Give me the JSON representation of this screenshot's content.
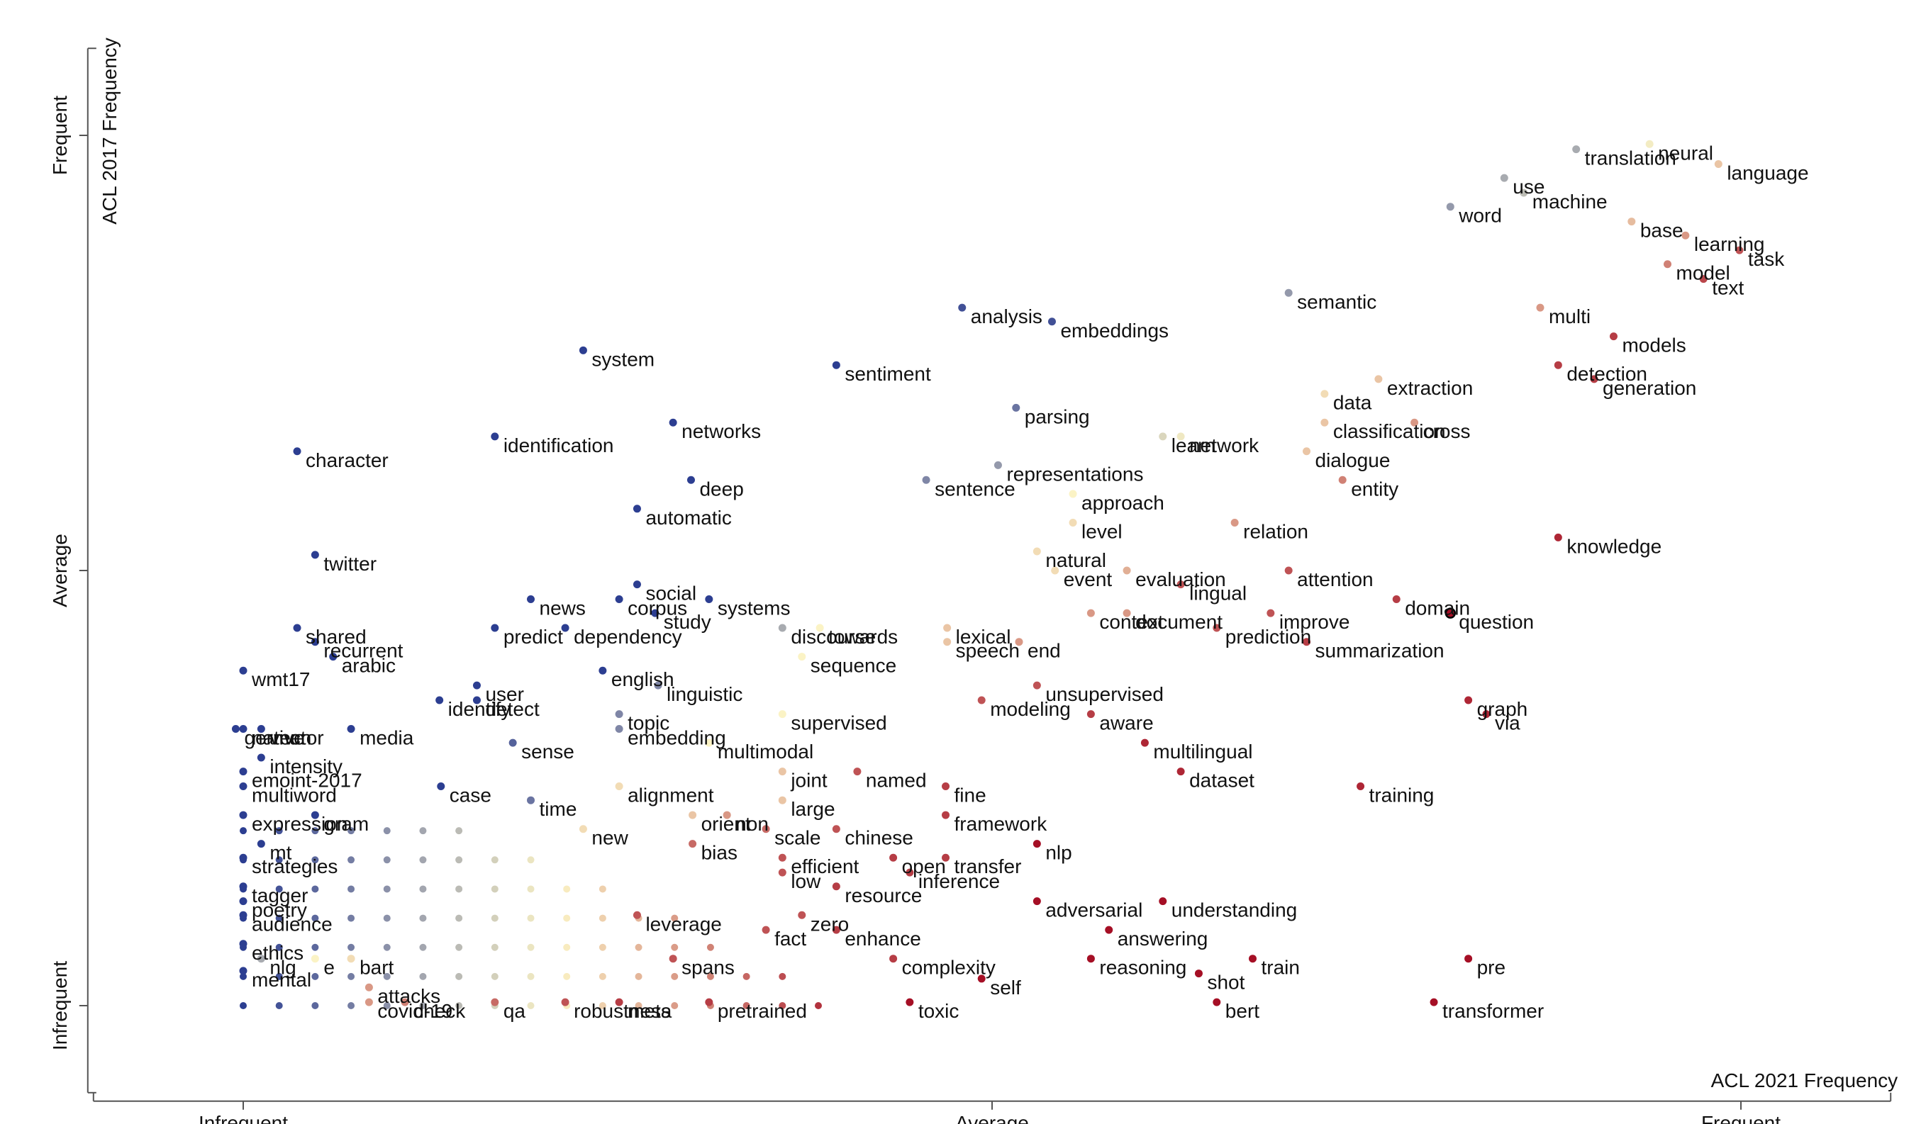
{
  "chart_data": {
    "type": "scatter",
    "xlabel": "ACL 2021 Frequency",
    "ylabel": "ACL 2017 Frequency",
    "x_ticks": [
      {
        "value": 0,
        "label": "Infrequent"
      },
      {
        "value": 0.5,
        "label": "Average"
      },
      {
        "value": 1,
        "label": "Frequent"
      }
    ],
    "y_ticks": [
      {
        "value": 0,
        "label": "Infrequent"
      },
      {
        "value": 0.5,
        "label": "Average"
      },
      {
        "value": 1,
        "label": "Frequent"
      }
    ],
    "xlim": [
      -0.1,
      1.1
    ],
    "ylim": [
      -0.1,
      1.1
    ],
    "grid": false,
    "legend": "none",
    "color_scale": {
      "low": "#2c3e91",
      "mid": "#fbf3c5",
      "high": "#a50f25"
    },
    "points": [
      {
        "label": "neural",
        "x": 0.939,
        "y": 0.99,
        "c": 0.48
      },
      {
        "label": "translation",
        "x": 0.89,
        "y": 0.984,
        "c": 0.3
      },
      {
        "label": "language",
        "x": 0.985,
        "y": 0.967,
        "c": 0.6
      },
      {
        "label": "use",
        "x": 0.842,
        "y": 0.951,
        "c": 0.3
      },
      {
        "label": "machine",
        "x": 0.855,
        "y": 0.934,
        "c": 0.35
      },
      {
        "label": "word",
        "x": 0.806,
        "y": 0.918,
        "c": 0.25
      },
      {
        "label": "base",
        "x": 0.927,
        "y": 0.901,
        "c": 0.62
      },
      {
        "label": "learning",
        "x": 0.963,
        "y": 0.885,
        "c": 0.7
      },
      {
        "label": "task",
        "x": 0.999,
        "y": 0.868,
        "c": 0.85
      },
      {
        "label": "model",
        "x": 0.951,
        "y": 0.852,
        "c": 0.75
      },
      {
        "label": "text",
        "x": 0.975,
        "y": 0.835,
        "c": 0.88
      },
      {
        "label": "semantic",
        "x": 0.698,
        "y": 0.819,
        "c": 0.25
      },
      {
        "label": "analysis",
        "x": 0.48,
        "y": 0.802,
        "c": 0.05
      },
      {
        "label": "multi",
        "x": 0.866,
        "y": 0.802,
        "c": 0.7
      },
      {
        "label": "embeddings",
        "x": 0.54,
        "y": 0.786,
        "c": 0.05
      },
      {
        "label": "models",
        "x": 0.915,
        "y": 0.769,
        "c": 0.9
      },
      {
        "label": "system",
        "x": 0.227,
        "y": 0.753,
        "c": 0.0
      },
      {
        "label": "sentiment",
        "x": 0.396,
        "y": 0.736,
        "c": 0.0
      },
      {
        "label": "detection",
        "x": 0.878,
        "y": 0.736,
        "c": 0.9
      },
      {
        "label": "extraction",
        "x": 0.758,
        "y": 0.72,
        "c": 0.6
      },
      {
        "label": "generation",
        "x": 0.902,
        "y": 0.72,
        "c": 0.9
      },
      {
        "label": "data",
        "x": 0.722,
        "y": 0.703,
        "c": 0.55
      },
      {
        "label": "parsing",
        "x": 0.516,
        "y": 0.687,
        "c": 0.15
      },
      {
        "label": "classification",
        "x": 0.722,
        "y": 0.67,
        "c": 0.6
      },
      {
        "label": "cross",
        "x": 0.782,
        "y": 0.67,
        "c": 0.7
      },
      {
        "label": "networks",
        "x": 0.287,
        "y": 0.67,
        "c": 0.0
      },
      {
        "label": "identification",
        "x": 0.168,
        "y": 0.654,
        "c": 0.0
      },
      {
        "label": "learn",
        "x": 0.614,
        "y": 0.654,
        "c": 0.42
      },
      {
        "label": "network",
        "x": 0.626,
        "y": 0.654,
        "c": 0.47
      },
      {
        "label": "character",
        "x": 0.036,
        "y": 0.637,
        "c": 0.0
      },
      {
        "label": "dialogue",
        "x": 0.71,
        "y": 0.637,
        "c": 0.6
      },
      {
        "label": "representations",
        "x": 0.504,
        "y": 0.621,
        "c": 0.25
      },
      {
        "label": "deep",
        "x": 0.299,
        "y": 0.604,
        "c": 0.0
      },
      {
        "label": "sentence",
        "x": 0.456,
        "y": 0.604,
        "c": 0.2
      },
      {
        "label": "entity",
        "x": 0.734,
        "y": 0.604,
        "c": 0.75
      },
      {
        "label": "approach",
        "x": 0.554,
        "y": 0.588,
        "c": 0.5
      },
      {
        "label": "automatic",
        "x": 0.263,
        "y": 0.571,
        "c": 0.0
      },
      {
        "label": "level",
        "x": 0.554,
        "y": 0.555,
        "c": 0.55
      },
      {
        "label": "relation",
        "x": 0.662,
        "y": 0.555,
        "c": 0.7
      },
      {
        "label": "natural",
        "x": 0.53,
        "y": 0.522,
        "c": 0.55
      },
      {
        "label": "knowledge",
        "x": 0.878,
        "y": 0.538,
        "c": 0.95
      },
      {
        "label": "twitter",
        "x": 0.048,
        "y": 0.518,
        "c": 0.0
      },
      {
        "label": "event",
        "x": 0.542,
        "y": 0.5,
        "c": 0.55
      },
      {
        "label": "evaluation",
        "x": 0.59,
        "y": 0.5,
        "c": 0.65
      },
      {
        "label": "attention",
        "x": 0.698,
        "y": 0.5,
        "c": 0.85
      },
      {
        "label": "lingual",
        "x": 0.626,
        "y": 0.484,
        "c": 0.85
      },
      {
        "label": "domain",
        "x": 0.77,
        "y": 0.467,
        "c": 0.9
      },
      {
        "label": "news",
        "x": 0.192,
        "y": 0.467,
        "c": 0.0
      },
      {
        "label": "social",
        "x": 0.263,
        "y": 0.484,
        "c": 0.0
      },
      {
        "label": "corpus",
        "x": 0.251,
        "y": 0.467,
        "c": 0.0
      },
      {
        "label": "study",
        "x": 0.275,
        "y": 0.451,
        "c": 0.0
      },
      {
        "label": "systems",
        "x": 0.311,
        "y": 0.467,
        "c": 0.0
      },
      {
        "label": "question",
        "x": 0.806,
        "y": 0.451,
        "c": 1.0
      },
      {
        "label": "improve",
        "x": 0.686,
        "y": 0.451,
        "c": 0.85
      },
      {
        "label": "context",
        "x": 0.566,
        "y": 0.451,
        "c": 0.7
      },
      {
        "label": "towards",
        "x": 0.385,
        "y": 0.434,
        "c": 0.5
      },
      {
        "label": "shared",
        "x": 0.036,
        "y": 0.434,
        "c": 0.0
      },
      {
        "label": "predict",
        "x": 0.168,
        "y": 0.434,
        "c": 0.0
      },
      {
        "label": "dependency",
        "x": 0.215,
        "y": 0.434,
        "c": 0.0
      },
      {
        "label": "lexical",
        "x": 0.47,
        "y": 0.434,
        "c": 0.6
      },
      {
        "label": "document",
        "x": 0.59,
        "y": 0.451,
        "c": 0.7
      },
      {
        "label": "prediction",
        "x": 0.65,
        "y": 0.434,
        "c": 0.85
      },
      {
        "label": "recurrent",
        "x": 0.048,
        "y": 0.418,
        "c": 0.0
      },
      {
        "label": "discourse",
        "x": 0.36,
        "y": 0.434,
        "c": 0.3
      },
      {
        "label": "summarization",
        "x": 0.71,
        "y": 0.418,
        "c": 0.9
      },
      {
        "label": "speech",
        "x": 0.47,
        "y": 0.418,
        "c": 0.6
      },
      {
        "label": "end",
        "x": 0.518,
        "y": 0.418,
        "c": 0.7
      },
      {
        "label": "wmt17",
        "x": 0.0,
        "y": 0.385,
        "c": 0.0
      },
      {
        "label": "arabic",
        "x": 0.06,
        "y": 0.401,
        "c": 0.0
      },
      {
        "label": "english",
        "x": 0.24,
        "y": 0.385,
        "c": 0.0
      },
      {
        "label": "linguistic",
        "x": 0.277,
        "y": 0.368,
        "c": 0.2
      },
      {
        "label": "sequence",
        "x": 0.373,
        "y": 0.401,
        "c": 0.5
      },
      {
        "label": "unsupervised",
        "x": 0.53,
        "y": 0.368,
        "c": 0.85
      },
      {
        "label": "user",
        "x": 0.156,
        "y": 0.368,
        "c": 0.0
      },
      {
        "label": "identify",
        "x": 0.131,
        "y": 0.351,
        "c": 0.0
      },
      {
        "label": "detect",
        "x": 0.156,
        "y": 0.351,
        "c": 0.0
      },
      {
        "label": "german",
        "x": -0.005,
        "y": 0.318,
        "c": 0.0
      },
      {
        "label": "vector",
        "x": 0.012,
        "y": 0.318,
        "c": 0.0
      },
      {
        "label": "media",
        "x": 0.072,
        "y": 0.318,
        "c": 0.0
      },
      {
        "label": "supervised",
        "x": 0.36,
        "y": 0.335,
        "c": 0.5
      },
      {
        "label": "modeling",
        "x": 0.493,
        "y": 0.351,
        "c": 0.85
      },
      {
        "label": "aware",
        "x": 0.566,
        "y": 0.335,
        "c": 0.9
      },
      {
        "label": "embedding",
        "x": 0.251,
        "y": 0.318,
        "c": 0.2
      },
      {
        "label": "topic",
        "x": 0.251,
        "y": 0.335,
        "c": 0.2
      },
      {
        "label": "native",
        "x": 0.0,
        "y": 0.318,
        "c": 0.0
      },
      {
        "label": "sense",
        "x": 0.18,
        "y": 0.302,
        "c": 0.1
      },
      {
        "label": "multilingual",
        "x": 0.602,
        "y": 0.302,
        "c": 0.95
      },
      {
        "label": "graph",
        "x": 0.818,
        "y": 0.351,
        "c": 0.95
      },
      {
        "label": "via",
        "x": 0.83,
        "y": 0.335,
        "c": 0.95
      },
      {
        "label": "multimodal",
        "x": 0.311,
        "y": 0.302,
        "c": 0.5
      },
      {
        "label": "emoint-2017",
        "x": 0.0,
        "y": 0.269,
        "c": 0.0
      },
      {
        "label": "intensity",
        "x": 0.012,
        "y": 0.285,
        "c": 0.0
      },
      {
        "label": "joint",
        "x": 0.36,
        "y": 0.269,
        "c": 0.6
      },
      {
        "label": "named",
        "x": 0.41,
        "y": 0.269,
        "c": 0.85
      },
      {
        "label": "multiword",
        "x": 0.0,
        "y": 0.252,
        "c": 0.0
      },
      {
        "label": "alignment",
        "x": 0.251,
        "y": 0.252,
        "c": 0.55
      },
      {
        "label": "fine",
        "x": 0.469,
        "y": 0.252,
        "c": 0.9
      },
      {
        "label": "dataset",
        "x": 0.626,
        "y": 0.269,
        "c": 0.95
      },
      {
        "label": "case",
        "x": 0.132,
        "y": 0.252,
        "c": 0.0
      },
      {
        "label": "large",
        "x": 0.36,
        "y": 0.236,
        "c": 0.6
      },
      {
        "label": "training",
        "x": 0.746,
        "y": 0.252,
        "c": 0.95
      },
      {
        "label": "time",
        "x": 0.192,
        "y": 0.236,
        "c": 0.15
      },
      {
        "label": "orient",
        "x": 0.3,
        "y": 0.219,
        "c": 0.6
      },
      {
        "label": "non",
        "x": 0.323,
        "y": 0.219,
        "c": 0.7
      },
      {
        "label": "framework",
        "x": 0.469,
        "y": 0.219,
        "c": 0.9
      },
      {
        "label": "expression",
        "x": 0.0,
        "y": 0.219,
        "c": 0.0
      },
      {
        "label": "gram",
        "x": 0.048,
        "y": 0.219,
        "c": 0.0
      },
      {
        "label": "new",
        "x": 0.227,
        "y": 0.203,
        "c": 0.55
      },
      {
        "label": "scale",
        "x": 0.349,
        "y": 0.203,
        "c": 0.8
      },
      {
        "label": "chinese",
        "x": 0.396,
        "y": 0.203,
        "c": 0.85
      },
      {
        "label": "mt",
        "x": 0.012,
        "y": 0.186,
        "c": 0.0
      },
      {
        "label": "bias",
        "x": 0.3,
        "y": 0.186,
        "c": 0.8
      },
      {
        "label": "nlp",
        "x": 0.53,
        "y": 0.186,
        "c": 1.0
      },
      {
        "label": "open",
        "x": 0.434,
        "y": 0.17,
        "c": 0.9
      },
      {
        "label": "transfer",
        "x": 0.469,
        "y": 0.17,
        "c": 0.9
      },
      {
        "label": "efficient",
        "x": 0.36,
        "y": 0.17,
        "c": 0.85
      },
      {
        "label": "strategies",
        "x": 0.0,
        "y": 0.17,
        "c": 0.0
      },
      {
        "label": "low",
        "x": 0.36,
        "y": 0.153,
        "c": 0.85
      },
      {
        "label": "inference",
        "x": 0.445,
        "y": 0.153,
        "c": 0.9
      },
      {
        "label": "tagger",
        "x": 0.0,
        "y": 0.137,
        "c": 0.0
      },
      {
        "label": "resource",
        "x": 0.396,
        "y": 0.137,
        "c": 0.9
      },
      {
        "label": "adversarial",
        "x": 0.53,
        "y": 0.12,
        "c": 1.0
      },
      {
        "label": "understanding",
        "x": 0.614,
        "y": 0.12,
        "c": 1.0
      },
      {
        "label": "poetry",
        "x": 0.0,
        "y": 0.12,
        "c": 0.0
      },
      {
        "label": "leverage",
        "x": 0.263,
        "y": 0.104,
        "c": 0.85
      },
      {
        "label": "audience",
        "x": 0.0,
        "y": 0.104,
        "c": 0.0
      },
      {
        "label": "zero",
        "x": 0.373,
        "y": 0.104,
        "c": 0.85
      },
      {
        "label": "enhance",
        "x": 0.396,
        "y": 0.087,
        "c": 0.9
      },
      {
        "label": "answering",
        "x": 0.578,
        "y": 0.087,
        "c": 1.0
      },
      {
        "label": "fact",
        "x": 0.349,
        "y": 0.087,
        "c": 0.85
      },
      {
        "label": "complexity",
        "x": 0.434,
        "y": 0.054,
        "c": 0.9
      },
      {
        "label": "ethics",
        "x": 0.0,
        "y": 0.071,
        "c": 0.0
      },
      {
        "label": "nlg",
        "x": 0.012,
        "y": 0.054,
        "c": 0.3
      },
      {
        "label": "e",
        "x": 0.048,
        "y": 0.054,
        "c": 0.5
      },
      {
        "label": "bart",
        "x": 0.072,
        "y": 0.054,
        "c": 0.55
      },
      {
        "label": "reasoning",
        "x": 0.566,
        "y": 0.054,
        "c": 1.0
      },
      {
        "label": "spans",
        "x": 0.287,
        "y": 0.054,
        "c": 0.85
      },
      {
        "label": "shot",
        "x": 0.638,
        "y": 0.037,
        "c": 1.0
      },
      {
        "label": "train",
        "x": 0.674,
        "y": 0.054,
        "c": 1.0
      },
      {
        "label": "pre",
        "x": 0.818,
        "y": 0.054,
        "c": 1.0
      },
      {
        "label": "mental",
        "x": 0.0,
        "y": 0.04,
        "c": 0.0
      },
      {
        "label": "attacks",
        "x": 0.084,
        "y": 0.021,
        "c": 0.7
      },
      {
        "label": "self",
        "x": 0.493,
        "y": 0.031,
        "c": 1.0
      },
      {
        "label": "covid-19",
        "x": 0.084,
        "y": 0.004,
        "c": 0.7
      },
      {
        "label": "check",
        "x": 0.108,
        "y": 0.004,
        "c": 0.75
      },
      {
        "label": "qa",
        "x": 0.168,
        "y": 0.004,
        "c": 0.8
      },
      {
        "label": "robustness",
        "x": 0.215,
        "y": 0.004,
        "c": 0.85
      },
      {
        "label": "meta",
        "x": 0.251,
        "y": 0.004,
        "c": 0.9
      },
      {
        "label": "pretrained",
        "x": 0.311,
        "y": 0.004,
        "c": 0.9
      },
      {
        "label": "toxic",
        "x": 0.445,
        "y": 0.004,
        "c": 1.0
      },
      {
        "label": "bert",
        "x": 0.65,
        "y": 0.004,
        "c": 1.0
      },
      {
        "label": "transformer",
        "x": 0.795,
        "y": 0.004,
        "c": 1.0
      }
    ]
  }
}
